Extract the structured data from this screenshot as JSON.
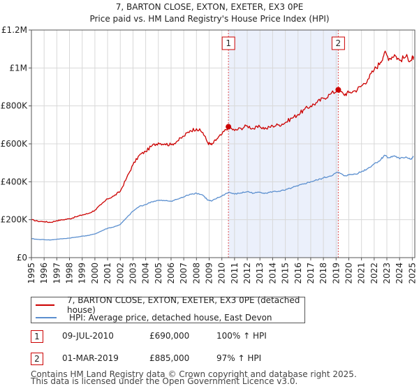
{
  "chart_data": {
    "type": "line",
    "title": "7, BARTON CLOSE, EXTON, EXETER, EX3 0PE",
    "subtitle": "Price paid vs. HM Land Registry's House Price Index (HPI)",
    "xlim": [
      1995.0,
      2025.2
    ],
    "ylim": [
      0,
      1200000
    ],
    "x_ticks": [
      1995,
      1996,
      1997,
      1998,
      1999,
      2000,
      2001,
      2002,
      2003,
      2004,
      2005,
      2006,
      2007,
      2008,
      2009,
      2010,
      2011,
      2012,
      2013,
      2014,
      2015,
      2016,
      2017,
      2018,
      2019,
      2020,
      2021,
      2022,
      2023,
      2024,
      2025
    ],
    "y_ticks": [
      {
        "value": 0,
        "label": "£0"
      },
      {
        "value": 200000,
        "label": "£200K"
      },
      {
        "value": 400000,
        "label": "£400K"
      },
      {
        "value": 600000,
        "label": "£600K"
      },
      {
        "value": 800000,
        "label": "£800K"
      },
      {
        "value": 1000000,
        "label": "£1M"
      },
      {
        "value": 1200000,
        "label": "£1.2M"
      }
    ],
    "grid": true,
    "shaded_period": [
      2010.52,
      2019.17
    ],
    "series": [
      {
        "name": "7, BARTON CLOSE, EXTON, EXETER, EX3 0PE (detached house)",
        "color": "#cc0000",
        "points": [
          [
            1995.0,
            200000
          ],
          [
            1995.5,
            192000
          ],
          [
            1996.0,
            190000
          ],
          [
            1996.5,
            186000
          ],
          [
            1997.0,
            195000
          ],
          [
            1997.5,
            200000
          ],
          [
            1998.0,
            205000
          ],
          [
            1998.5,
            215000
          ],
          [
            1999.0,
            225000
          ],
          [
            1999.5,
            233000
          ],
          [
            2000.0,
            250000
          ],
          [
            2000.5,
            280000
          ],
          [
            2001.0,
            310000
          ],
          [
            2001.5,
            325000
          ],
          [
            2002.0,
            350000
          ],
          [
            2002.5,
            420000
          ],
          [
            2003.0,
            490000
          ],
          [
            2003.5,
            540000
          ],
          [
            2004.0,
            560000
          ],
          [
            2004.5,
            590000
          ],
          [
            2005.0,
            605000
          ],
          [
            2005.5,
            600000
          ],
          [
            2006.0,
            595000
          ],
          [
            2006.5,
            615000
          ],
          [
            2007.0,
            640000
          ],
          [
            2007.5,
            670000
          ],
          [
            2008.0,
            680000
          ],
          [
            2008.5,
            660000
          ],
          [
            2008.9,
            605000
          ],
          [
            2009.2,
            595000
          ],
          [
            2009.6,
            625000
          ],
          [
            2010.0,
            650000
          ],
          [
            2010.52,
            690000
          ],
          [
            2011.0,
            670000
          ],
          [
            2011.5,
            682000
          ],
          [
            2012.0,
            695000
          ],
          [
            2012.5,
            680000
          ],
          [
            2013.0,
            690000
          ],
          [
            2013.5,
            680000
          ],
          [
            2014.0,
            695000
          ],
          [
            2014.5,
            700000
          ],
          [
            2015.0,
            712000
          ],
          [
            2015.5,
            735000
          ],
          [
            2016.0,
            755000
          ],
          [
            2016.5,
            780000
          ],
          [
            2017.0,
            800000
          ],
          [
            2017.5,
            818000
          ],
          [
            2018.0,
            840000
          ],
          [
            2018.5,
            860000
          ],
          [
            2019.17,
            885000
          ],
          [
            2019.6,
            860000
          ],
          [
            2020.0,
            870000
          ],
          [
            2020.5,
            880000
          ],
          [
            2021.0,
            905000
          ],
          [
            2021.5,
            940000
          ],
          [
            2022.0,
            990000
          ],
          [
            2022.5,
            1030000
          ],
          [
            2022.8,
            1080000
          ],
          [
            2023.2,
            1050000
          ],
          [
            2023.6,
            1070000
          ],
          [
            2024.0,
            1040000
          ],
          [
            2024.5,
            1060000
          ],
          [
            2024.9,
            1040000
          ],
          [
            2025.1,
            1060000
          ]
        ]
      },
      {
        "name": "HPI: Average price, detached house, East Devon",
        "color": "#5b8fcf",
        "points": [
          [
            1995.0,
            100000
          ],
          [
            1995.5,
            96000
          ],
          [
            1996.0,
            95000
          ],
          [
            1996.5,
            93000
          ],
          [
            1997.0,
            97000
          ],
          [
            1997.5,
            100000
          ],
          [
            1998.0,
            103000
          ],
          [
            1998.5,
            108000
          ],
          [
            1999.0,
            113000
          ],
          [
            1999.5,
            117000
          ],
          [
            2000.0,
            125000
          ],
          [
            2000.5,
            140000
          ],
          [
            2001.0,
            155000
          ],
          [
            2001.5,
            162000
          ],
          [
            2002.0,
            175000
          ],
          [
            2002.5,
            210000
          ],
          [
            2003.0,
            245000
          ],
          [
            2003.5,
            270000
          ],
          [
            2004.0,
            280000
          ],
          [
            2004.5,
            295000
          ],
          [
            2005.0,
            302000
          ],
          [
            2005.5,
            300000
          ],
          [
            2006.0,
            298000
          ],
          [
            2006.5,
            308000
          ],
          [
            2007.0,
            320000
          ],
          [
            2007.5,
            335000
          ],
          [
            2008.0,
            340000
          ],
          [
            2008.5,
            330000
          ],
          [
            2008.9,
            303000
          ],
          [
            2009.2,
            298000
          ],
          [
            2009.6,
            313000
          ],
          [
            2010.0,
            325000
          ],
          [
            2010.52,
            345000
          ],
          [
            2011.0,
            335000
          ],
          [
            2011.5,
            341000
          ],
          [
            2012.0,
            348000
          ],
          [
            2012.5,
            340000
          ],
          [
            2013.0,
            345000
          ],
          [
            2013.5,
            340000
          ],
          [
            2014.0,
            348000
          ],
          [
            2014.5,
            350000
          ],
          [
            2015.0,
            356000
          ],
          [
            2015.5,
            368000
          ],
          [
            2016.0,
            378000
          ],
          [
            2016.5,
            390000
          ],
          [
            2017.0,
            400000
          ],
          [
            2017.5,
            409000
          ],
          [
            2018.0,
            420000
          ],
          [
            2018.5,
            430000
          ],
          [
            2019.17,
            450000
          ],
          [
            2019.6,
            432000
          ],
          [
            2020.0,
            436000
          ],
          [
            2020.5,
            441000
          ],
          [
            2021.0,
            453000
          ],
          [
            2021.5,
            470000
          ],
          [
            2022.0,
            495000
          ],
          [
            2022.5,
            515000
          ],
          [
            2022.8,
            540000
          ],
          [
            2023.2,
            527000
          ],
          [
            2023.6,
            537000
          ],
          [
            2024.0,
            521000
          ],
          [
            2024.5,
            531000
          ],
          [
            2024.9,
            520000
          ],
          [
            2025.1,
            532000
          ]
        ]
      }
    ],
    "markers": [
      {
        "label": "1",
        "x": 2010.52,
        "y": 690000
      },
      {
        "label": "2",
        "x": 2019.17,
        "y": 885000
      }
    ]
  },
  "legend": {
    "items": [
      {
        "label": "7, BARTON CLOSE, EXTON, EXETER, EX3 0PE (detached house)",
        "color": "#cc0000"
      },
      {
        "label": "HPI: Average price, detached house, East Devon",
        "color": "#5b8fcf"
      }
    ]
  },
  "sales": [
    {
      "num": "1",
      "date": "09-JUL-2010",
      "price": "£690,000",
      "hpi": "100% ↑ HPI"
    },
    {
      "num": "2",
      "date": "01-MAR-2019",
      "price": "£885,000",
      "hpi": "97% ↑ HPI"
    }
  ],
  "footer": {
    "line1": "Contains HM Land Registry data © Crown copyright and database right 2025.",
    "line2": "This data is licensed under the Open Government Licence v3.0."
  }
}
